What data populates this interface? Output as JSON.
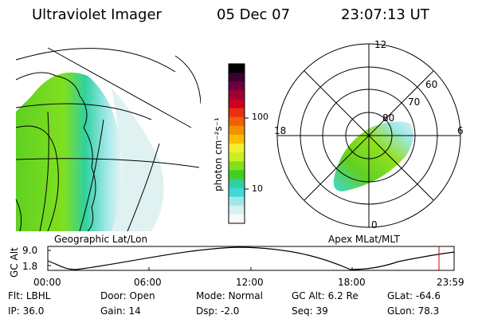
{
  "header": {
    "instrument": "Ultraviolet Imager",
    "date": "05 Dec 07",
    "time": "23:07:13 UT"
  },
  "geo_panel": {
    "label": "Geographic Lat/Lon"
  },
  "apex_panel": {
    "label": "Apex MLat/MLT",
    "mlt_labels": [
      "12",
      "18",
      "6",
      "0"
    ],
    "mlat_labels": [
      "60",
      "70",
      "80"
    ]
  },
  "colorbar": {
    "unit_label": "photon cm⁻²s⁻¹",
    "tick_labels": [
      "100",
      "10"
    ],
    "colors": [
      "#000000",
      "#3a0030",
      "#6e0040",
      "#a00030",
      "#cc0020",
      "#e83010",
      "#f06000",
      "#f59000",
      "#f8c000",
      "#f4ee30",
      "#c8f020",
      "#80e020",
      "#40d020",
      "#30d0a0",
      "#40d8d8",
      "#a0e8e8",
      "#d8f0f0",
      "#f8f8f8"
    ]
  },
  "altitude_plot": {
    "axis_label": "GC Alt",
    "y_ticks": [
      "9.0",
      "1.8"
    ],
    "x_ticks": [
      "00:00",
      "06:00",
      "12:00",
      "18:00",
      "23:59"
    ],
    "current_marker_color": "#cc0000"
  },
  "info_rows": [
    [
      {
        "label": "Flt:",
        "value": "LBHL"
      },
      {
        "label": "Door:",
        "value": "Open"
      },
      {
        "label": "Mode:",
        "value": "Normal"
      },
      {
        "label": "GC Alt:",
        "value": "6.2 Re"
      },
      {
        "label": "GLat:",
        "value": "-64.6"
      }
    ],
    [
      {
        "label": "IP:",
        "value": "36.0"
      },
      {
        "label": "Gain:",
        "value": "14"
      },
      {
        "label": "Dsp:",
        "value": "-2.0"
      },
      {
        "label": "Seq:",
        "value": "39"
      },
      {
        "label": "GLon:",
        "value": "78.3"
      }
    ]
  ]
}
